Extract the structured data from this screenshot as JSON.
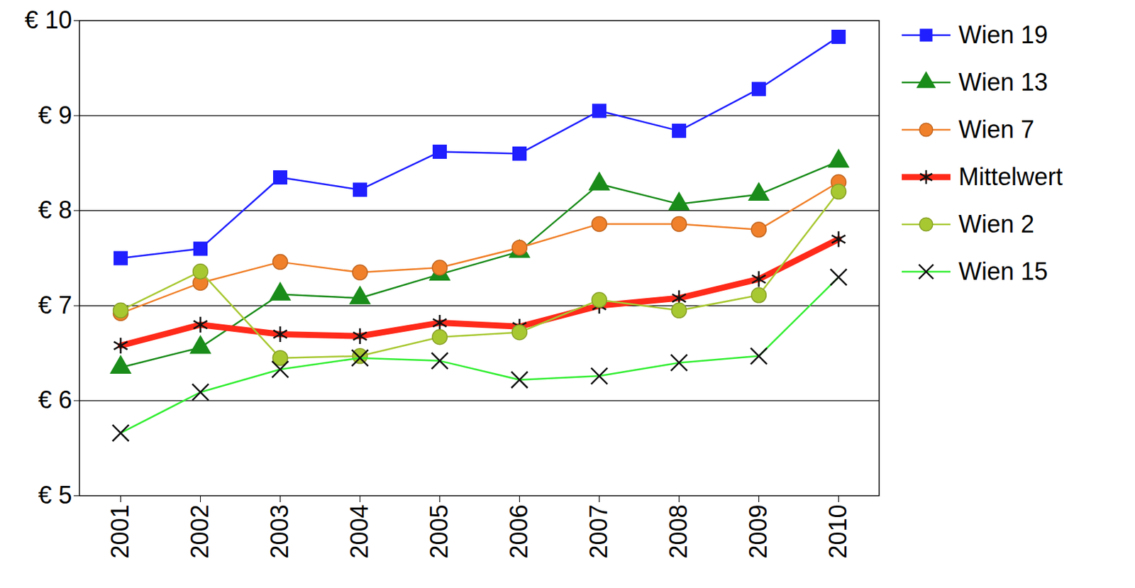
{
  "chart_data": {
    "type": "line",
    "categories": [
      "2001",
      "2002",
      "2003",
      "2004",
      "2005",
      "2006",
      "2007",
      "2008",
      "2009",
      "2010"
    ],
    "ylim": [
      5,
      10
    ],
    "yticks": [
      {
        "value": 5,
        "label": "€ 5"
      },
      {
        "value": 6,
        "label": "€ 6"
      },
      {
        "value": 7,
        "label": "€ 7"
      },
      {
        "value": 8,
        "label": "€ 8"
      },
      {
        "value": 9,
        "label": "€ 9"
      },
      {
        "value": 10,
        "label": "€ 10"
      }
    ],
    "grid": true,
    "legend": "right",
    "series": [
      {
        "name": "Wien 19",
        "color": "#1f1fff",
        "marker": "square",
        "line_style": "solid",
        "values": [
          7.5,
          7.6,
          8.35,
          8.22,
          8.62,
          8.6,
          9.05,
          8.84,
          9.28,
          9.83
        ]
      },
      {
        "name": "Wien 13",
        "color": "#1a8c1a",
        "marker": "triangle",
        "line_style": "solid",
        "values": [
          6.35,
          6.56,
          7.12,
          7.08,
          7.33,
          7.57,
          8.28,
          8.07,
          8.17,
          8.52
        ]
      },
      {
        "name": "Wien 7",
        "color": "#f0802a",
        "marker": "circle",
        "line_style": "solid",
        "values": [
          6.92,
          7.24,
          7.46,
          7.35,
          7.4,
          7.61,
          7.86,
          7.86,
          7.8,
          8.3
        ]
      },
      {
        "name": "Mittelwert",
        "color": "#ff2a1a",
        "marker": "asterisk",
        "line_style": "thick",
        "values": [
          6.58,
          6.8,
          6.7,
          6.68,
          6.82,
          6.78,
          7.0,
          7.08,
          7.28,
          7.7
        ]
      },
      {
        "name": "Wien 2",
        "color": "#a8c832",
        "marker": "circle",
        "line_style": "solid",
        "values": [
          6.95,
          7.36,
          6.45,
          6.47,
          6.67,
          6.72,
          7.06,
          6.95,
          7.11,
          8.2
        ]
      },
      {
        "name": "Wien 15",
        "color": "#33ee33",
        "marker": "times",
        "line_style": "solid",
        "values": [
          5.66,
          6.09,
          6.33,
          6.45,
          6.42,
          6.22,
          6.26,
          6.4,
          6.47,
          7.3
        ]
      }
    ]
  }
}
